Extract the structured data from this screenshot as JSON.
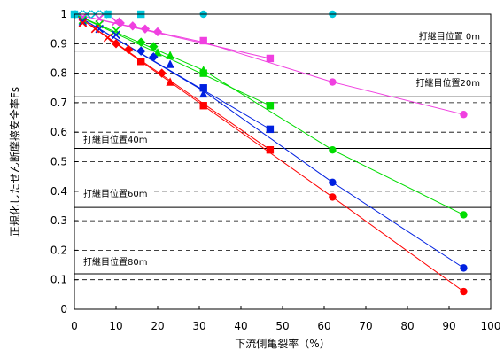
{
  "chart_data": {
    "type": "line",
    "title": "",
    "xlabel": "下流側亀裂率（%）",
    "ylabel": "正規化したせん断摩擦安全率Fs",
    "xlim": [
      0,
      100
    ],
    "ylim": [
      0,
      1
    ],
    "x_ticks": [
      0,
      10,
      20,
      30,
      40,
      50,
      60,
      70,
      80,
      90,
      100
    ],
    "y_ticks": [
      0,
      0.1,
      0.2,
      0.3,
      0.4,
      0.5,
      0.6,
      0.7,
      0.8,
      0.9,
      1
    ],
    "y_tick_labels": [
      "0",
      "0.1",
      "0.2",
      "0.3",
      "0.4",
      "0.5",
      "0.6",
      "0.7",
      "0.8",
      "0.9",
      "1"
    ],
    "grid": {
      "horizontal_dashed": true,
      "vertical": false
    },
    "reference_lines": [
      {
        "label": "打継目位置 0m",
        "y": 0.875
      },
      {
        "label": "打継目位置20m",
        "y": 0.72
      },
      {
        "label": "打継目位置40m",
        "y": 0.545
      },
      {
        "label": "打継目位置60m",
        "y": 0.345
      },
      {
        "label": "打継目位置80m",
        "y": 0.12
      }
    ],
    "series": [
      {
        "color": "#00c8dc",
        "markers": [
          {
            "shape": "circle",
            "points": [
              [
                0,
                1.0
              ],
              [
                31,
                1.0
              ],
              [
                62,
                1.0
              ]
            ]
          },
          {
            "shape": "square",
            "points": [
              [
                0,
                1.0
              ],
              [
                8,
                1.0
              ],
              [
                16,
                1.0
              ]
            ]
          },
          {
            "shape": "x",
            "points": [
              [
                1,
                1.0
              ],
              [
                3,
                1.0
              ],
              [
                5,
                1.0
              ],
              [
                7,
                1.0
              ]
            ]
          }
        ],
        "lines": [
          [
            [
              0,
              1.0
            ],
            [
              62,
              1.0
            ]
          ],
          [
            [
              0,
              1.0
            ],
            [
              93.5,
              1.0
            ]
          ]
        ]
      },
      {
        "color": "#f040e0",
        "markers": [
          {
            "shape": "circle",
            "points": [
              [
                62,
                0.77
              ],
              [
                93.5,
                0.66
              ]
            ]
          },
          {
            "shape": "square",
            "points": [
              [
                31,
                0.91
              ],
              [
                47,
                0.85
              ]
            ]
          },
          {
            "shape": "diamond",
            "points": [
              [
                11,
                0.97
              ],
              [
                14,
                0.96
              ],
              [
                17,
                0.95
              ],
              [
                20,
                0.94
              ]
            ]
          },
          {
            "shape": "x",
            "points": [
              [
                2,
                0.99
              ],
              [
                6,
                0.985
              ],
              [
                10,
                0.975
              ]
            ]
          }
        ],
        "lines": [
          [
            [
              0,
              1.0
            ],
            [
              31,
              0.905
            ],
            [
              62,
              0.77
            ],
            [
              93.5,
              0.66
            ]
          ],
          [
            [
              0,
              1.0
            ],
            [
              47,
              0.85
            ]
          ]
        ]
      },
      {
        "color": "#00dc00",
        "markers": [
          {
            "shape": "circle",
            "points": [
              [
                62,
                0.54
              ],
              [
                93.5,
                0.32
              ]
            ]
          },
          {
            "shape": "square",
            "points": [
              [
                31,
                0.8
              ],
              [
                47,
                0.69
              ]
            ]
          },
          {
            "shape": "triangle",
            "points": [
              [
                20,
                0.87
              ],
              [
                23,
                0.86
              ],
              [
                31,
                0.81
              ]
            ]
          },
          {
            "shape": "diamond",
            "points": [
              [
                16,
                0.905
              ],
              [
                19,
                0.89
              ]
            ]
          },
          {
            "shape": "x",
            "points": [
              [
                2,
                0.98
              ],
              [
                6,
                0.965
              ],
              [
                10,
                0.945
              ]
            ]
          }
        ],
        "lines": [
          [
            [
              0,
              1.0
            ],
            [
              31,
              0.81
            ],
            [
              62,
              0.54
            ],
            [
              93.5,
              0.32
            ]
          ],
          [
            [
              0,
              1.0
            ],
            [
              47,
              0.69
            ]
          ]
        ]
      },
      {
        "color": "#0020e0",
        "markers": [
          {
            "shape": "circle",
            "points": [
              [
                62,
                0.43
              ],
              [
                93.5,
                0.14
              ]
            ]
          },
          {
            "shape": "square",
            "points": [
              [
                31,
                0.75
              ],
              [
                47,
                0.61
              ]
            ]
          },
          {
            "shape": "triangle",
            "points": [
              [
                23,
                0.83
              ],
              [
                31,
                0.73
              ]
            ]
          },
          {
            "shape": "diamond",
            "points": [
              [
                16,
                0.875
              ],
              [
                19,
                0.855
              ]
            ]
          },
          {
            "shape": "x",
            "points": [
              [
                2,
                0.975
              ],
              [
                6,
                0.95
              ],
              [
                10,
                0.93
              ]
            ]
          }
        ],
        "lines": [
          [
            [
              0,
              1.0
            ],
            [
              31,
              0.74
            ],
            [
              62,
              0.43
            ],
            [
              93.5,
              0.14
            ]
          ],
          [
            [
              0,
              1.0
            ],
            [
              47,
              0.61
            ]
          ]
        ]
      },
      {
        "color": "#ff0000",
        "markers": [
          {
            "shape": "circle",
            "points": [
              [
                62,
                0.38
              ],
              [
                93.5,
                0.06
              ]
            ]
          },
          {
            "shape": "square",
            "points": [
              [
                16,
                0.84
              ],
              [
                31,
                0.69
              ],
              [
                47,
                0.54
              ]
            ]
          },
          {
            "shape": "triangle",
            "points": [
              [
                23,
                0.77
              ]
            ]
          },
          {
            "shape": "diamond",
            "points": [
              [
                10,
                0.9
              ],
              [
                13,
                0.88
              ],
              [
                21,
                0.8
              ]
            ]
          },
          {
            "shape": "x",
            "points": [
              [
                2,
                0.97
              ],
              [
                5,
                0.95
              ],
              [
                8,
                0.92
              ]
            ]
          }
        ],
        "lines": [
          [
            [
              0,
              1.0
            ],
            [
              31,
              0.69
            ],
            [
              62,
              0.38
            ],
            [
              93.5,
              0.06
            ]
          ],
          [
            [
              0,
              1.0
            ],
            [
              47,
              0.54
            ]
          ]
        ]
      }
    ]
  }
}
